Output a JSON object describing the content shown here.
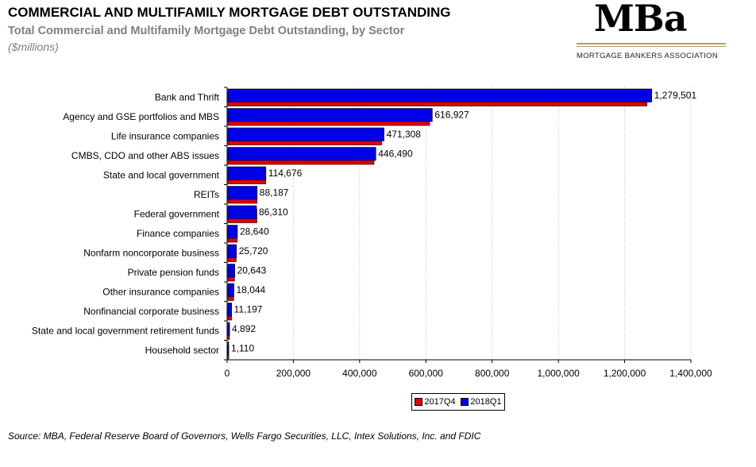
{
  "header": {
    "title": "COMMERCIAL AND MULTIFAMILY MORTGAGE DEBT OUTSTANDING",
    "subtitle": "Total Commercial and Multifamily Mortgage Debt Outstanding, by Sector",
    "units": "($millions)"
  },
  "logo": {
    "mark": "MBa",
    "tagline": "MORTGAGE BANKERS ASSOCIATION"
  },
  "footer": {
    "source": "Source:  MBA, Federal Reserve Board of Governors, Wells Fargo Securities, LLC, Intex Solutions, Inc. and FDIC"
  },
  "colors": {
    "series_2017q4": "#e00000",
    "series_2018q1": "#0000e6",
    "grid": "#c0c0c0"
  },
  "chart_data": {
    "type": "bar",
    "orientation": "horizontal",
    "categories": [
      "Bank and Thrift",
      "Agency and GSE portfolios and MBS",
      "Life insurance companies",
      "CMBS, CDO and other ABS issues",
      "State and local government",
      "REITs",
      "Federal government",
      "Finance companies",
      "Nonfarm noncorporate business",
      "Private pension funds",
      "Other insurance companies",
      "Nonfinancial corporate business",
      "State and local government retirement funds",
      "Household sector"
    ],
    "series": [
      {
        "name": "2017Q4",
        "values": [
          1265000,
          609000,
          464000,
          441000,
          114000,
          88000,
          87500,
          28000,
          25000,
          20000,
          17500,
          11000,
          4800,
          1100
        ]
      },
      {
        "name": "2018Q1",
        "values": [
          1279501,
          616927,
          471308,
          446490,
          114676,
          88187,
          86310,
          28640,
          25720,
          20643,
          18044,
          11197,
          4892,
          1110
        ]
      }
    ],
    "data_labels": [
      "1,279,501",
      "616,927",
      "471,308",
      "446,490",
      "114,676",
      "88,187",
      "86,310",
      "28,640",
      "25,720",
      "20,643",
      "18,044",
      "11,197",
      "4,892",
      "1,110"
    ],
    "xlim": [
      0,
      1400000
    ],
    "xticks": [
      0,
      200000,
      400000,
      600000,
      800000,
      1000000,
      1200000,
      1400000
    ],
    "xtick_labels": [
      "0",
      "200,000",
      "400,000",
      "600,000",
      "800,000",
      "1,000,000",
      "1,200,000",
      "1,400,000"
    ],
    "grid": "vertical dotted",
    "legend_position": "bottom"
  }
}
